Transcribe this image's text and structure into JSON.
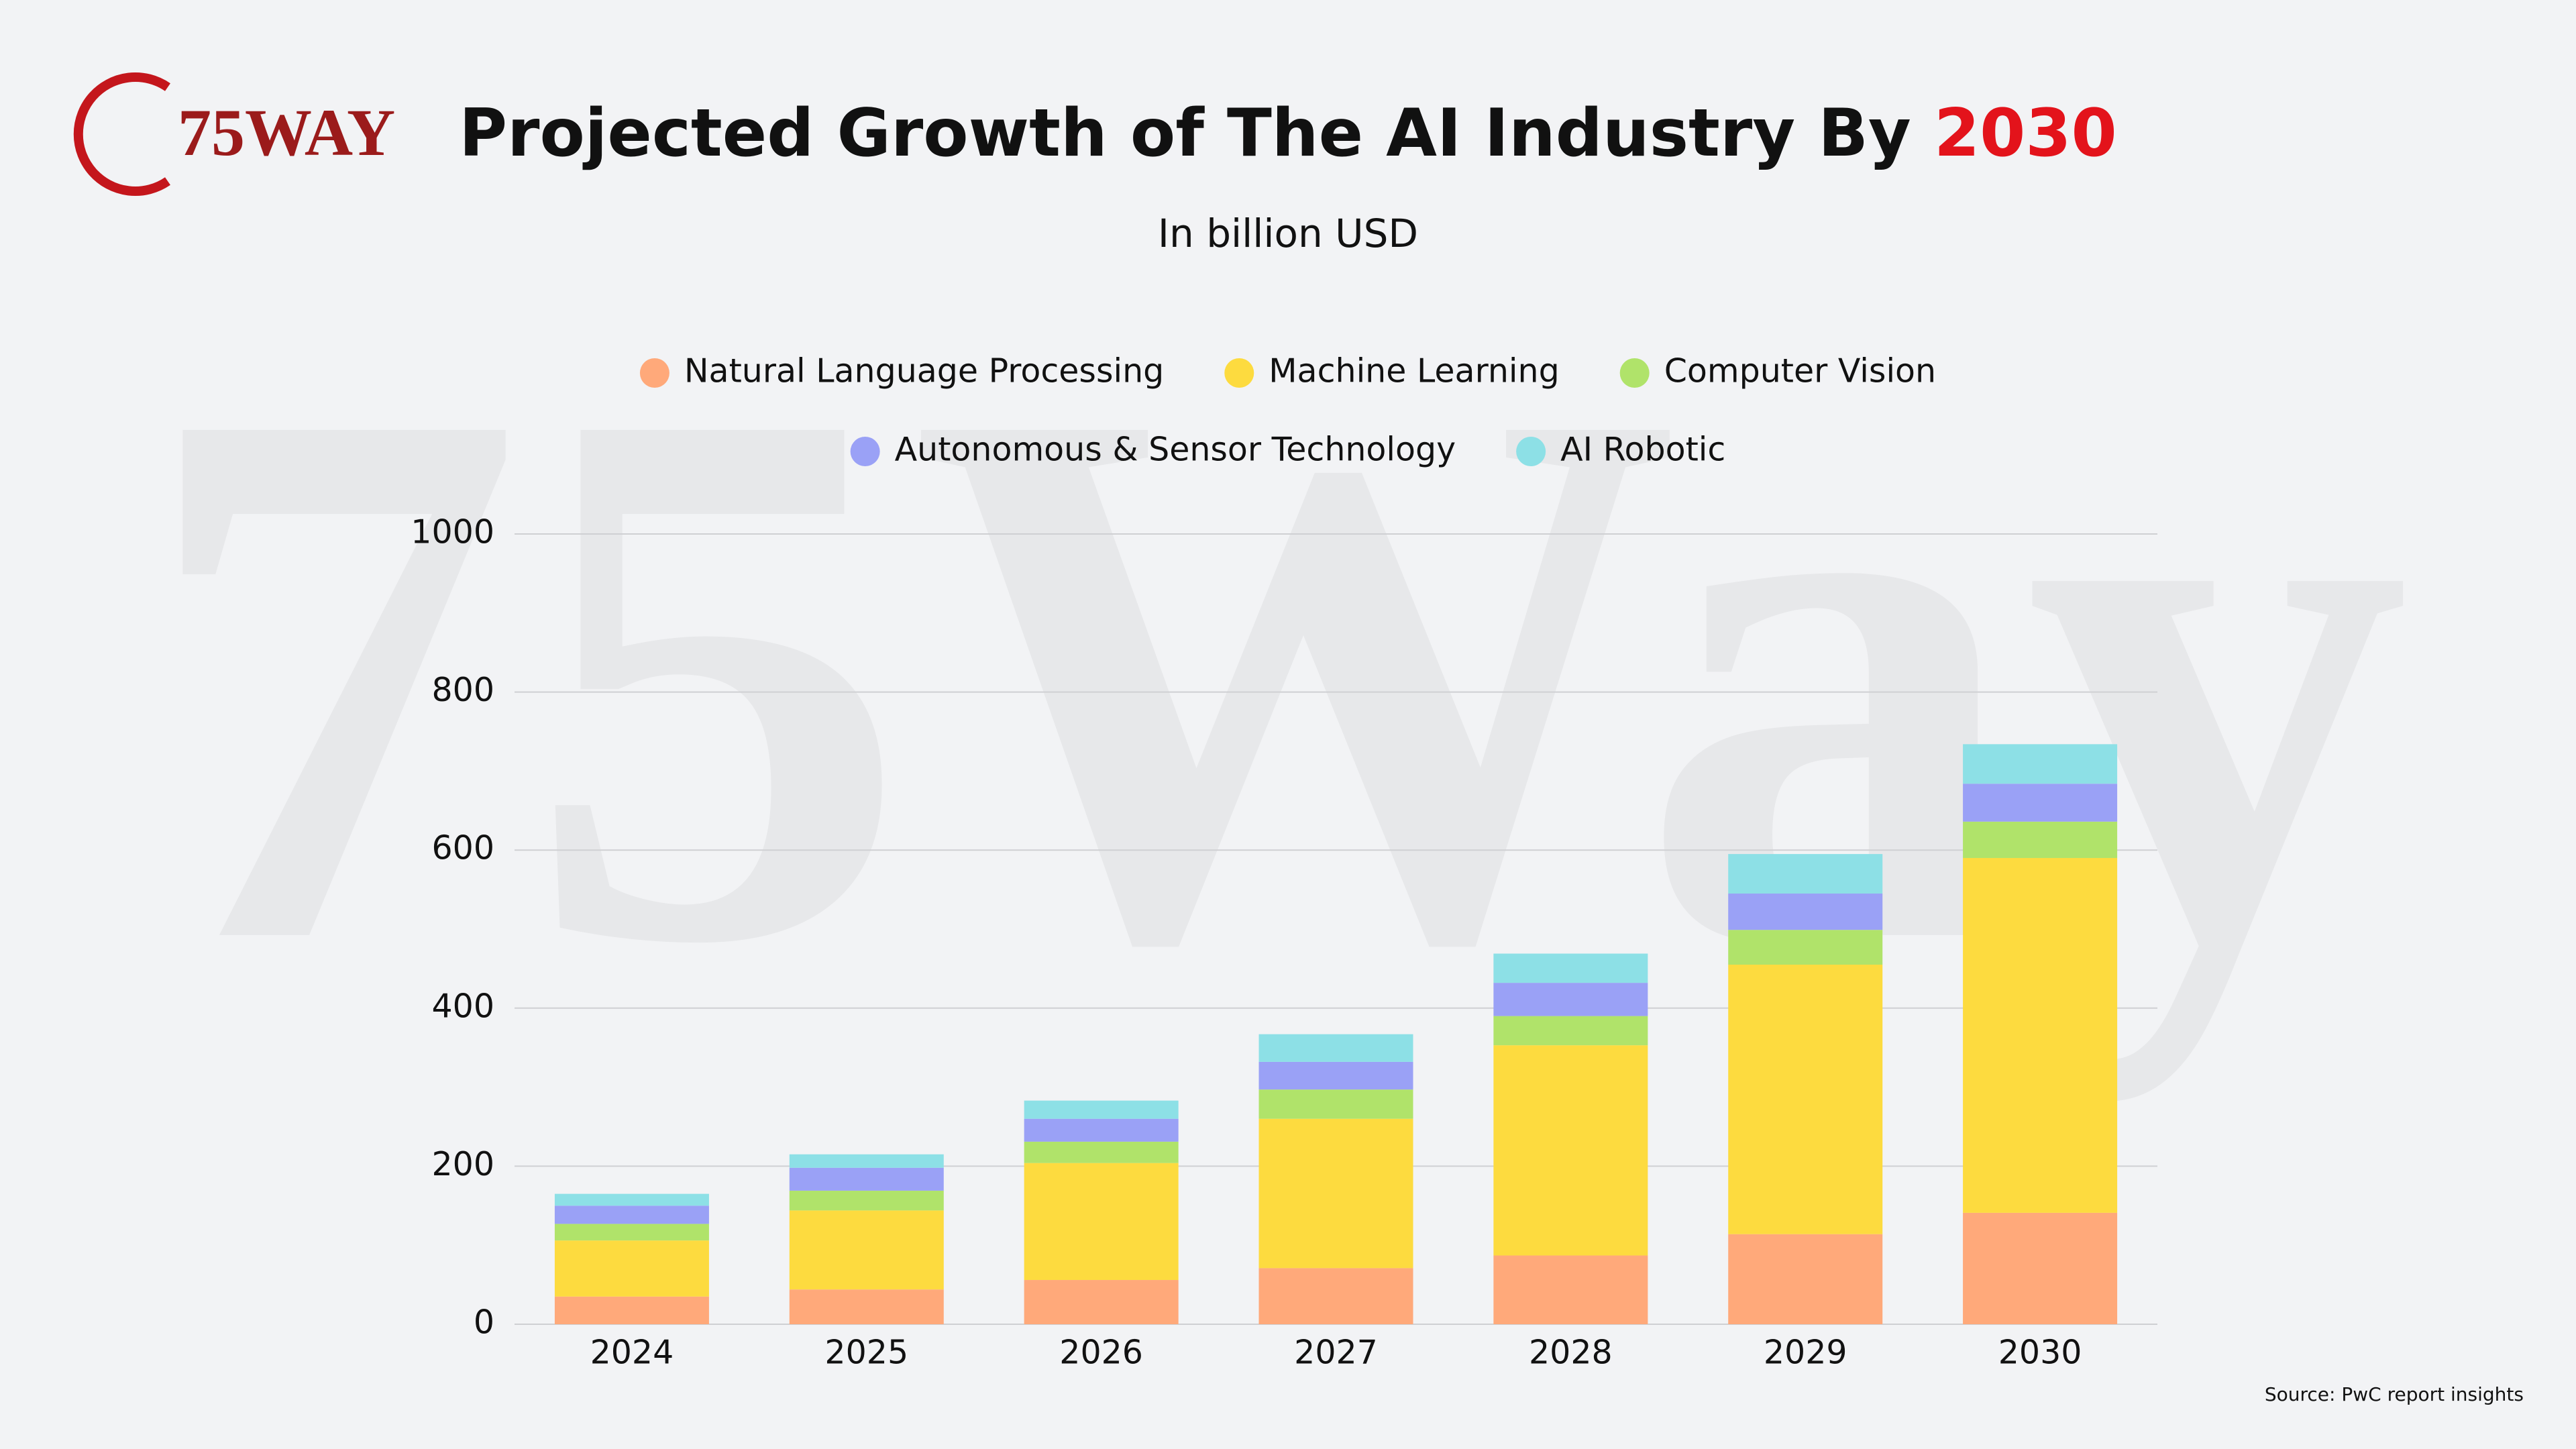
{
  "logo": "75WAY",
  "watermark": "75Way",
  "chart_data": {
    "type": "stacked-bar",
    "title": "Projected Growth of The AI Industry By ",
    "title_highlight": "2030",
    "subtitle": "In billion USD",
    "source": "Source: PwC report insights",
    "categories": [
      "2024",
      "2025",
      "2026",
      "2027",
      "2028",
      "2029",
      "2030"
    ],
    "series": [
      {
        "name": "Natural Language Processing",
        "color": "#ffa97a",
        "values": [
          35,
          44,
          56,
          71,
          87,
          114,
          141
        ]
      },
      {
        "name": "Machine Learning",
        "color": "#fddb3f",
        "values": [
          71,
          100,
          148,
          189,
          266,
          341,
          449
        ]
      },
      {
        "name": "Computer Vision",
        "color": "#b0e36a",
        "values": [
          21,
          25,
          27,
          37,
          37,
          44,
          46
        ]
      },
      {
        "name": "Autonomous & Sensor Technology",
        "color": "#9aa1f6",
        "values": [
          23,
          29,
          29,
          35,
          42,
          46,
          48
        ]
      },
      {
        "name": "AI Robotic",
        "color": "#8de0e6",
        "values": [
          15,
          17,
          23,
          35,
          37,
          50,
          50
        ]
      }
    ],
    "ylim": [
      0,
      1000
    ],
    "yticks": [
      0,
      200,
      400,
      600,
      800,
      1000
    ],
    "grid": true
  }
}
